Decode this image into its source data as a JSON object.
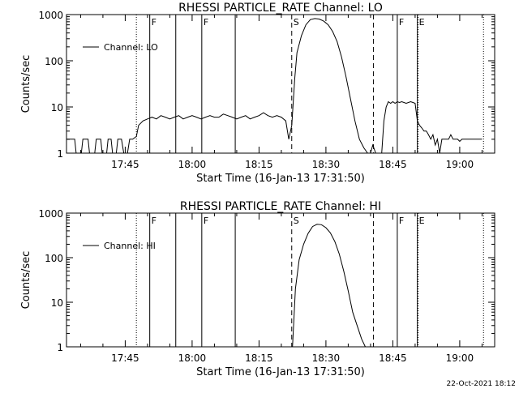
{
  "footer": {
    "timestamp": "22-Oct-2021 18:12"
  },
  "chart_data": [
    {
      "type": "line",
      "title": "RHESSI PARTICLE_RATE Channel: LO",
      "xlabel": "Start Time (16-Jan-13 17:31:50)",
      "ylabel": "Counts/sec",
      "yscale": "log",
      "ylim": [
        1,
        1000
      ],
      "xlim": [
        "17:31:50",
        "19:07:50"
      ],
      "x_ticks": [
        "17:45",
        "18:00",
        "18:15",
        "18:30",
        "18:45",
        "19:00"
      ],
      "y_ticks": [
        "1",
        "10",
        "100",
        "1000"
      ],
      "legend": {
        "entries": [
          "Channel: LO"
        ],
        "placement": "top-left"
      },
      "grid": false,
      "markers": [
        {
          "time": "17:47:30",
          "style": "dotted",
          "label": ""
        },
        {
          "time": "17:50:30",
          "style": "solid",
          "label": "F"
        },
        {
          "time": "17:56:20",
          "style": "solid",
          "label": ""
        },
        {
          "time": "18:02:10",
          "style": "solid",
          "label": "F"
        },
        {
          "time": "18:09:40",
          "style": "solid",
          "label": ""
        },
        {
          "time": "18:22:20",
          "style": "dashed",
          "label": "S"
        },
        {
          "time": "18:40:40",
          "style": "dashed",
          "label": ""
        },
        {
          "time": "18:46:00",
          "style": "solid",
          "label": "F"
        },
        {
          "time": "18:50:30",
          "style": "solid",
          "label": "E"
        },
        {
          "time": "18:50:40",
          "style": "dotted",
          "label": ""
        },
        {
          "time": "19:05:20",
          "style": "dotted",
          "label": ""
        }
      ],
      "series": [
        {
          "name": "Channel: LO",
          "x": [
            "17:31:50",
            "17:33:40",
            "17:34:00",
            "17:35:10",
            "17:35:30",
            "17:36:40",
            "17:37:00",
            "17:38:10",
            "17:38:30",
            "17:39:30",
            "17:39:50",
            "17:40:50",
            "17:41:10",
            "17:41:50",
            "17:42:10",
            "17:43:00",
            "17:43:20",
            "17:44:10",
            "17:44:40",
            "17:45:30",
            "17:46:00",
            "17:46:40",
            "17:47:30",
            "17:48:00",
            "17:49:00",
            "17:50:00",
            "17:51:00",
            "17:52:00",
            "17:53:00",
            "17:54:00",
            "17:55:00",
            "17:56:00",
            "17:57:00",
            "17:58:00",
            "17:59:00",
            "18:00:00",
            "18:01:00",
            "18:02:00",
            "18:03:00",
            "18:04:00",
            "18:05:00",
            "18:06:00",
            "18:07:00",
            "18:08:00",
            "18:09:00",
            "18:10:00",
            "18:11:00",
            "18:12:00",
            "18:13:00",
            "18:14:00",
            "18:15:00",
            "18:16:00",
            "18:17:00",
            "18:18:00",
            "18:19:00",
            "18:20:00",
            "18:21:00",
            "18:21:40",
            "18:22:20",
            "18:23:00",
            "18:23:30",
            "18:24:30",
            "18:25:30",
            "18:26:30",
            "18:27:30",
            "18:28:30",
            "18:29:30",
            "18:30:30",
            "18:31:30",
            "18:32:30",
            "18:33:30",
            "18:34:30",
            "18:35:30",
            "18:36:30",
            "18:37:30",
            "18:38:30",
            "18:39:20",
            "18:40:00",
            "18:40:30",
            "18:41:10",
            "18:41:50",
            "18:42:30",
            "18:43:00",
            "18:43:30",
            "18:44:00",
            "18:44:30",
            "18:45:00",
            "18:45:30",
            "18:46:00",
            "18:46:30",
            "18:47:00",
            "18:48:00",
            "18:49:00",
            "18:50:00",
            "18:50:30",
            "18:51:00",
            "18:51:30",
            "18:52:00",
            "18:52:30",
            "18:53:00",
            "18:53:30",
            "18:54:00",
            "18:54:30",
            "18:55:00",
            "18:55:30",
            "18:56:00",
            "18:56:30",
            "18:57:00",
            "18:57:30",
            "18:58:00",
            "18:58:30",
            "18:59:00",
            "18:59:30",
            "19:00:00",
            "19:00:30",
            "19:01:00",
            "19:01:30",
            "19:02:00",
            "19:02:30",
            "19:03:00",
            "19:03:30",
            "19:04:00",
            "19:04:30",
            "19:05:00"
          ],
          "y": [
            2,
            2,
            1,
            1,
            2,
            2,
            1,
            1,
            2,
            2,
            1,
            1,
            2,
            2,
            1,
            1,
            2,
            2,
            1,
            1,
            2,
            2,
            2.3,
            4,
            5,
            5.5,
            6,
            5.5,
            6.5,
            6,
            5.5,
            6,
            6.5,
            5.5,
            6,
            6.5,
            6,
            5.5,
            6,
            6.5,
            6,
            6,
            7,
            6.5,
            6,
            5.5,
            6,
            6.5,
            5.5,
            6,
            6.5,
            7.5,
            6.5,
            6,
            6.5,
            6,
            5,
            2,
            4,
            40,
            150,
            350,
            600,
            780,
            820,
            800,
            720,
            600,
            430,
            260,
            120,
            45,
            15,
            5,
            2,
            1.3,
            1,
            1,
            1.5,
            1,
            1,
            1,
            5,
            10,
            13,
            12,
            13,
            12,
            13,
            12.5,
            13,
            12,
            13,
            12,
            5,
            4,
            3.5,
            3,
            3,
            2.5,
            2,
            2.5,
            1.5,
            2,
            1,
            2,
            2,
            2,
            2,
            2.5,
            2,
            2,
            2,
            1.8,
            2,
            2,
            2,
            2,
            2,
            2,
            2,
            2,
            2,
            2
          ]
        }
      ]
    },
    {
      "type": "line",
      "title": "RHESSI PARTICLE_RATE Channel: HI",
      "xlabel": "Start Time (16-Jan-13 17:31:50)",
      "ylabel": "Counts/sec",
      "yscale": "log",
      "ylim": [
        1,
        1000
      ],
      "xlim": [
        "17:31:50",
        "19:07:50"
      ],
      "x_ticks": [
        "17:45",
        "18:00",
        "18:15",
        "18:30",
        "18:45",
        "19:00"
      ],
      "y_ticks": [
        "1",
        "10",
        "100",
        "1000"
      ],
      "legend": {
        "entries": [
          "Channel: HI"
        ],
        "placement": "top-left"
      },
      "grid": false,
      "markers": [
        {
          "time": "17:47:30",
          "style": "dotted",
          "label": ""
        },
        {
          "time": "17:50:30",
          "style": "solid",
          "label": "F"
        },
        {
          "time": "17:56:20",
          "style": "solid",
          "label": ""
        },
        {
          "time": "18:02:10",
          "style": "solid",
          "label": "F"
        },
        {
          "time": "18:09:40",
          "style": "solid",
          "label": ""
        },
        {
          "time": "18:22:20",
          "style": "dashed",
          "label": "S"
        },
        {
          "time": "18:40:40",
          "style": "dashed",
          "label": ""
        },
        {
          "time": "18:46:00",
          "style": "solid",
          "label": "F"
        },
        {
          "time": "18:50:30",
          "style": "solid",
          "label": "E"
        },
        {
          "time": "18:50:40",
          "style": "dotted",
          "label": ""
        },
        {
          "time": "19:05:20",
          "style": "dotted",
          "label": ""
        }
      ],
      "series": [
        {
          "name": "Channel: HI",
          "x": [
            "18:22:30",
            "18:23:10",
            "18:24:00",
            "18:25:00",
            "18:26:00",
            "18:27:00",
            "18:28:00",
            "18:29:00",
            "18:30:00",
            "18:31:00",
            "18:32:00",
            "18:33:00",
            "18:34:00",
            "18:35:00",
            "18:36:00",
            "18:37:00",
            "18:38:00",
            "18:38:50"
          ],
          "y": [
            1,
            20,
            90,
            200,
            350,
            500,
            560,
            550,
            470,
            360,
            230,
            120,
            50,
            18,
            6,
            3,
            1.5,
            1
          ]
        }
      ]
    }
  ]
}
